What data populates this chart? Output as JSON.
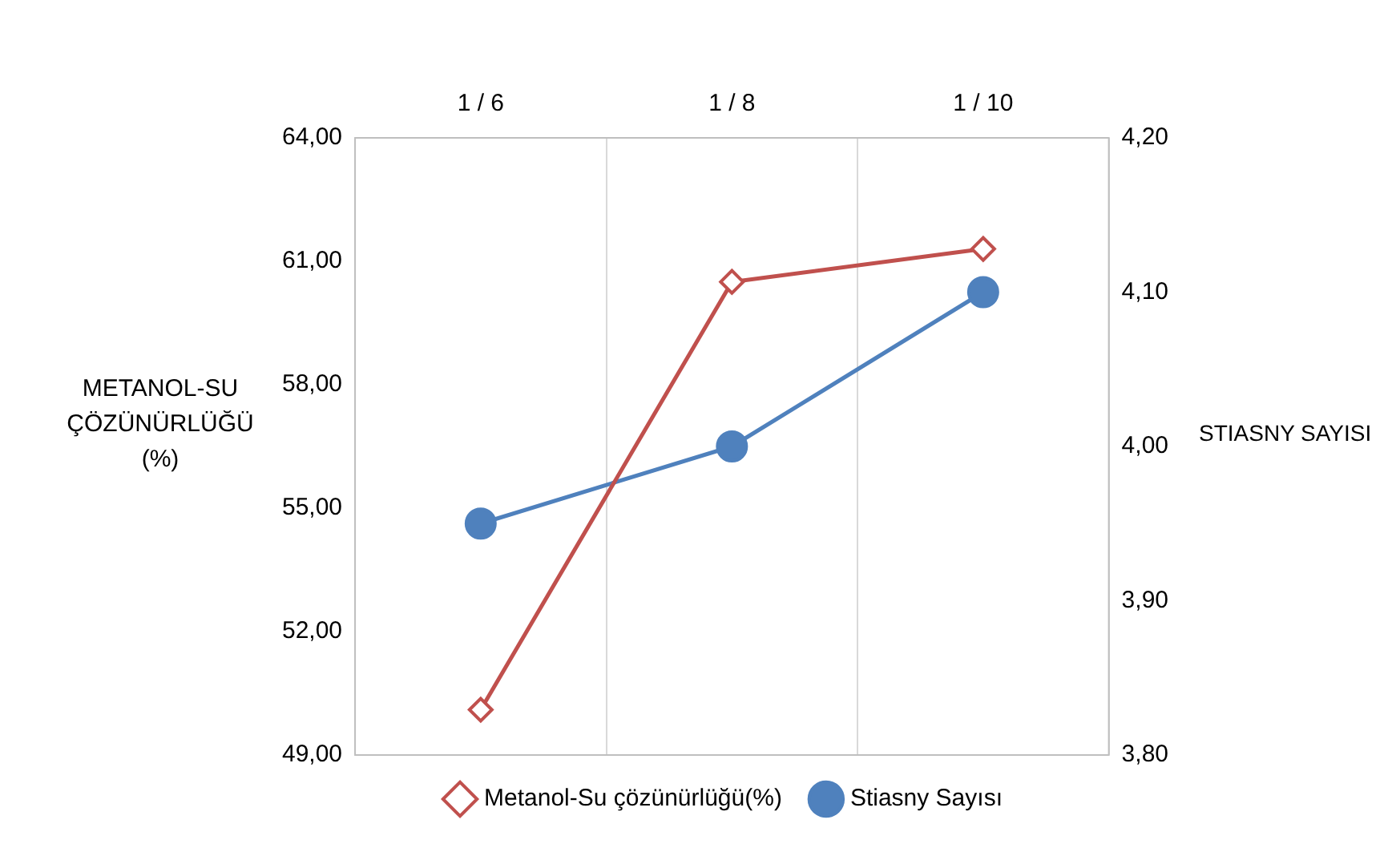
{
  "chart_data": {
    "type": "line",
    "categories": [
      "1 / 6",
      "1 / 8",
      "1 / 10"
    ],
    "ylabel": "METANOL-SU ÇÖZÜNÜRLÜĞÜ (%)",
    "y2label": "STIASNY SAYISI",
    "ylim": [
      49,
      64
    ],
    "yticks": [
      {
        "value": 49,
        "label": "49,00"
      },
      {
        "value": 52,
        "label": "52,00"
      },
      {
        "value": 55,
        "label": "55,00"
      },
      {
        "value": 58,
        "label": "58,00"
      },
      {
        "value": 61,
        "label": "61,00"
      },
      {
        "value": 64,
        "label": "64,00"
      }
    ],
    "y2lim": [
      3.8,
      4.2
    ],
    "y2ticks": [
      {
        "value": 3.8,
        "label": "3,80"
      },
      {
        "value": 3.9,
        "label": "3,90"
      },
      {
        "value": 4,
        "label": "4,00"
      },
      {
        "value": 4.1,
        "label": "4,10"
      },
      {
        "value": 4.2,
        "label": "4,20"
      }
    ],
    "series": [
      {
        "name": "Metanol-Su çözünürlüğü(%)",
        "color": "#c0504d",
        "marker": "diamond",
        "values": [
          50.1,
          60.5,
          61.3
        ]
      },
      {
        "name": "Stiasny Sayısı",
        "color": "#4f81bd",
        "marker": "circle",
        "axis": "y2",
        "values": [
          3.95,
          4.0,
          4.1
        ]
      }
    ],
    "grid": "x",
    "legend": "bottom",
    "line_style": "solid"
  }
}
